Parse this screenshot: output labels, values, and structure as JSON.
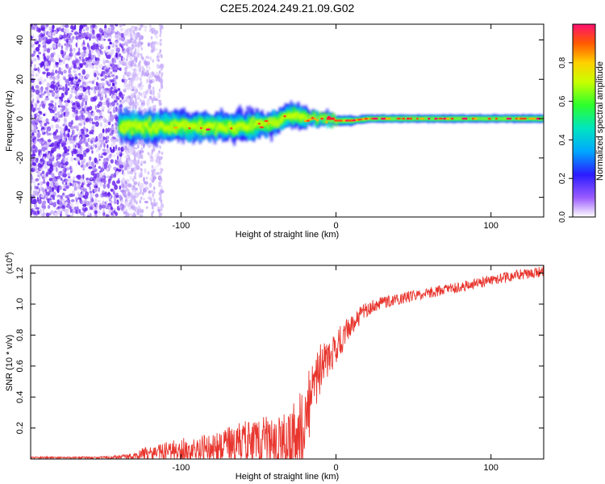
{
  "title": "C2E5.2024.249.21.09.G02",
  "colors": {
    "snr_line": "#e8362e",
    "frame": "#000000",
    "background": "#ffffff"
  },
  "spectrogram": {
    "type": "heatmap",
    "xlabel": "Height of straight line (km)",
    "ylabel": "Frequency (Hz)",
    "xlim": [
      -197,
      134
    ],
    "ylim": [
      -50,
      48
    ],
    "xticks": [
      -100,
      0,
      100
    ],
    "xtick_labels": [
      "-100",
      "0",
      "100"
    ],
    "yticks": [
      -40,
      -20,
      0,
      20,
      40
    ],
    "ytick_labels": [
      "-40",
      "-20",
      "0",
      "20",
      "40"
    ],
    "signal_track": {
      "start_km": -140,
      "note_points": [
        [
          -140,
          -4
        ],
        [
          -100,
          -4
        ],
        [
          -60,
          -4
        ],
        [
          -40,
          -2
        ],
        [
          -30,
          2
        ],
        [
          -15,
          0
        ],
        [
          -5,
          0
        ],
        [
          0,
          -1
        ],
        [
          10,
          -1
        ],
        [
          20,
          0
        ],
        [
          134,
          0
        ]
      ]
    },
    "noise_region_km": [
      -197,
      -112
    ]
  },
  "colorbar": {
    "label": "Normalized spectral amplitude",
    "range": [
      0.0,
      1.0
    ],
    "ticks": [
      0.0,
      0.2,
      0.4,
      0.6,
      0.8
    ],
    "tick_labels": [
      "0.0",
      "0.2",
      "0.4",
      "0.6",
      "0.8"
    ]
  },
  "chart_data": {
    "type": "line",
    "xlabel": "Height of straight line (km)",
    "ylabel": "SNR (10 * v/v)",
    "y_multiplier": "(x10",
    "y_multiplier_exp": "4",
    "y_multiplier_close": ")",
    "xlim": [
      -197,
      134
    ],
    "ylim": [
      0.0,
      1.25
    ],
    "xticks": [
      -100,
      0,
      100
    ],
    "xtick_labels": [
      "-100",
      "0",
      "100"
    ],
    "yticks": [
      0.2,
      0.4,
      0.6,
      0.8,
      1.0,
      1.2
    ],
    "ytick_labels": [
      "0.2",
      "0.4",
      "0.6",
      "0.8",
      "1.0",
      "1.2"
    ],
    "series": [
      {
        "x": [
          -197,
          -170,
          -150,
          -130,
          -125,
          -115,
          -105,
          -95,
          -85,
          -75,
          -65,
          -55,
          -45,
          -35,
          -28,
          -22,
          -18,
          -14,
          -10,
          -6,
          -2,
          2,
          6,
          10,
          15,
          20,
          25,
          30,
          40,
          50,
          60,
          70,
          80,
          90,
          100,
          110,
          120,
          134
        ],
        "y": [
          0.01,
          0.01,
          0.012,
          0.02,
          0.04,
          0.05,
          0.07,
          0.08,
          0.08,
          0.1,
          0.12,
          0.14,
          0.16,
          0.2,
          0.24,
          0.32,
          0.45,
          0.58,
          0.66,
          0.7,
          0.74,
          0.8,
          0.86,
          0.9,
          0.94,
          0.98,
          1.0,
          1.02,
          1.04,
          1.06,
          1.08,
          1.1,
          1.12,
          1.14,
          1.16,
          1.18,
          1.2,
          1.22
        ],
        "noise": [
          0.005,
          0.005,
          0.008,
          0.02,
          0.04,
          0.05,
          0.07,
          0.08,
          0.09,
          0.1,
          0.14,
          0.15,
          0.16,
          0.18,
          0.2,
          0.25,
          0.22,
          0.2,
          0.16,
          0.12,
          0.1,
          0.1,
          0.08,
          0.06,
          0.05,
          0.05,
          0.04,
          0.04,
          0.04,
          0.035,
          0.035,
          0.035,
          0.035,
          0.035,
          0.035,
          0.035,
          0.035,
          0.035
        ]
      }
    ]
  }
}
